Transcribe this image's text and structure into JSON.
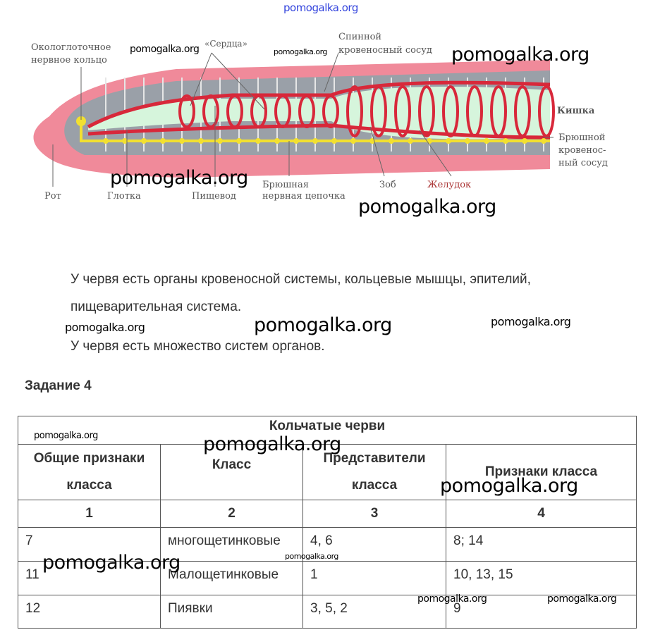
{
  "header_watermark": "pomogalka.org",
  "diagram": {
    "labels": {
      "ring": "Окологлоточное",
      "ring2": "нервное кольцо",
      "hearts": "«Сердца»",
      "dorsal1": "Спинной",
      "dorsal2": "кровеносный сосуд",
      "intestine": "Кишка",
      "ventral1": "Брюшной",
      "ventral2": "кровенос-",
      "ventral3": "ный сосуд",
      "mouth": "Рот",
      "pharynx": "Глотка",
      "esophagus": "Пищевод",
      "chain1": "Брюшная",
      "chain2": "нервная цепочка",
      "crop": "Зоб",
      "stomach": "Желудок"
    },
    "colors": {
      "body": "#f08a9a",
      "vessel": "#d8283a",
      "gut": "#c8f0d0",
      "nerve": "#f2e030",
      "segment": "#9aa0a8"
    }
  },
  "text": {
    "p1": "У червя есть органы кровеносной системы, кольцевые мышцы, эпителий,",
    "p2": "пищеварительная система.",
    "p3": "У червя есть множество систем органов."
  },
  "task_title": "Задание 4",
  "table": {
    "title": "Кольчатые черви",
    "headers": [
      "Общие признаки класса",
      "Класс",
      "Представители класса",
      "Признаки класса"
    ],
    "numbers": [
      "1",
      "2",
      "3",
      "4"
    ],
    "rows": [
      [
        "7",
        "многощетинковые",
        "4, 6",
        "8; 14"
      ],
      [
        "11",
        "Малощетинковые",
        "1",
        "10, 13, 15"
      ],
      [
        "12",
        "Пиявки",
        "3, 5, 2",
        "9"
      ]
    ]
  },
  "watermarks": [
    "pomogalka.org",
    "pomogalka.org",
    "pomogalka.org",
    "pomogalka.org",
    "pomogalka.org",
    "pomogalka.org",
    "pomogalka.org",
    "pomogalka.org",
    "pomogalka.org",
    "pomogalka.org",
    "pomogalka.org",
    "pomogalka.org",
    "pomogalka.org",
    "pomogalka.org",
    "pomogalka.org"
  ]
}
